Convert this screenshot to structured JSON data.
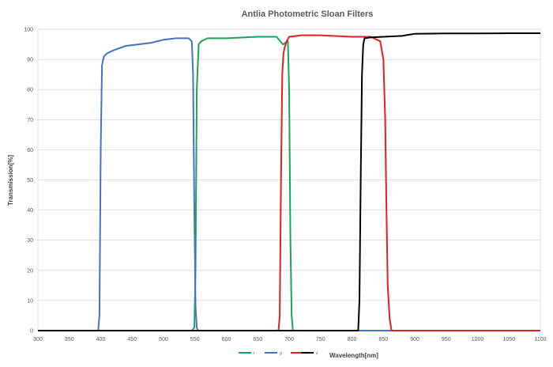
{
  "chart_data": {
    "type": "line",
    "title": "Antlia Photometric Sloan Filters",
    "xlabel": "Wavelength[nm]",
    "ylabel": "Transmission[%]",
    "xlim": [
      300,
      1100
    ],
    "ylim": [
      0,
      100
    ],
    "xticks": [
      "300",
      "350",
      "400",
      "450",
      "500",
      "550",
      "600",
      "650",
      "700",
      "750",
      "800",
      "850",
      "900",
      "950",
      "1000",
      "1050",
      "1100"
    ],
    "yticks": [
      "0",
      "10",
      "20",
      "30",
      "40",
      "50",
      "60",
      "70",
      "80",
      "90",
      "100"
    ],
    "grid": "horizontal",
    "legend_position": "bottom",
    "series": [
      {
        "name": "r",
        "color": "#1aa35a",
        "x": [
          300,
          545,
          549,
          551,
          553,
          556,
          560,
          570,
          600,
          650,
          680,
          690,
          698,
          700,
          702,
          704,
          706,
          1100
        ],
        "y": [
          0,
          0,
          1,
          20,
          80,
          95,
          96,
          97,
          97,
          97.5,
          97.5,
          95,
          96,
          80,
          30,
          5,
          0,
          0
        ]
      },
      {
        "name": "g",
        "color": "#4472c4",
        "x": [
          300,
          396,
          398,
          400,
          402,
          405,
          410,
          420,
          440,
          460,
          480,
          500,
          520,
          540,
          545,
          547,
          549,
          551,
          553,
          555,
          1100
        ],
        "y": [
          0,
          0,
          5,
          60,
          88,
          91,
          92,
          93,
          94.5,
          95,
          95.5,
          96.5,
          97,
          97,
          96,
          85,
          40,
          8,
          1,
          0,
          0
        ]
      },
      {
        "name": "i",
        "color": "#e02020",
        "x": [
          300,
          683,
          685,
          687,
          689,
          691,
          693,
          696,
          700,
          720,
          750,
          800,
          830,
          845,
          850,
          853,
          855,
          857,
          860,
          863,
          1100
        ],
        "y": [
          0,
          0,
          5,
          50,
          85,
          92,
          94,
          96,
          97.5,
          98,
          98,
          97.5,
          97.5,
          96,
          90,
          70,
          40,
          15,
          4,
          0,
          0
        ]
      },
      {
        "name": "z",
        "color": "#000000",
        "x": [
          300,
          810,
          812,
          814,
          816,
          818,
          820,
          830,
          850,
          880,
          900,
          950,
          1000,
          1050,
          1100
        ],
        "y": [
          0,
          0,
          10,
          50,
          85,
          95,
          97,
          97.3,
          97.5,
          97.8,
          98.5,
          98.6,
          98.6,
          98.7,
          98.7
        ]
      }
    ]
  }
}
